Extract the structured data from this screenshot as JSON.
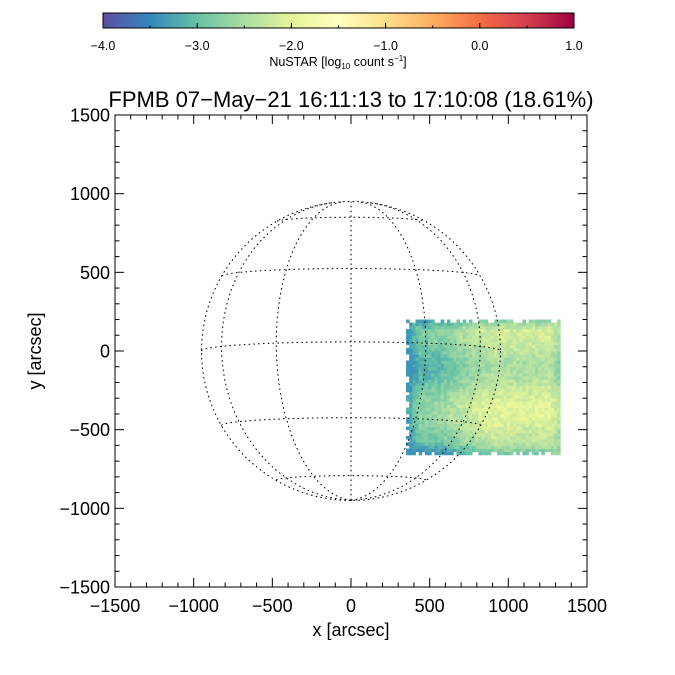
{
  "chart_data": {
    "type": "heatmap",
    "title": "FPMB 07−May−21 16:11:13 to 17:10:08 (18.61%)",
    "xlabel": "x [arcsec]",
    "ylabel": "y [arcsec]",
    "xlim": [
      -1500,
      1500
    ],
    "ylim": [
      -1500,
      1500
    ],
    "xticks": [
      -1500,
      -1000,
      -500,
      0,
      500,
      1000,
      1500
    ],
    "xtick_labels": [
      "−1500",
      "−1000",
      "−500",
      "0",
      "500",
      "1000",
      "1500"
    ],
    "yticks": [
      -1500,
      -1000,
      -500,
      0,
      500,
      1000,
      1500
    ],
    "ytick_labels": [
      "−1500",
      "−1000",
      "−500",
      "0",
      "500",
      "1000",
      "1500"
    ],
    "minor_tick_step": 100,
    "colorbar": {
      "label_main": "NuSTAR [log",
      "label_sub": "10",
      "label_mid": " count s",
      "label_sup": "−1",
      "label_end": "]",
      "range": [
        -4.0,
        1.0
      ],
      "ticks": [
        -4.0,
        -3.0,
        -2.0,
        -1.0,
        0.0,
        1.0
      ],
      "tick_labels": [
        "−4.0",
        "−3.0",
        "−2.0",
        "−1.0",
        "0.0",
        "1.0"
      ],
      "colormap": "Spectral_r",
      "stops": [
        "#5e4fa2",
        "#3288bd",
        "#66c2a5",
        "#abdda4",
        "#e6f598",
        "#ffffbf",
        "#fee08b",
        "#fdae61",
        "#f46d43",
        "#d53e4f",
        "#9e0142"
      ]
    },
    "solar_disk": {
      "radius_arcsec": 950,
      "grid_style": "dotted",
      "latitudes_deg": [
        -60,
        -30,
        0,
        30,
        60
      ],
      "longitudes_deg": [
        -60,
        -30,
        0,
        30,
        60
      ],
      "b0_deg": -3.5
    },
    "emission_region": {
      "x_range": [
        350,
        1330
      ],
      "y_range": [
        -660,
        190
      ],
      "value_range_log10": [
        -3.4,
        -1.8
      ],
      "brightest_area": "lower right"
    }
  }
}
